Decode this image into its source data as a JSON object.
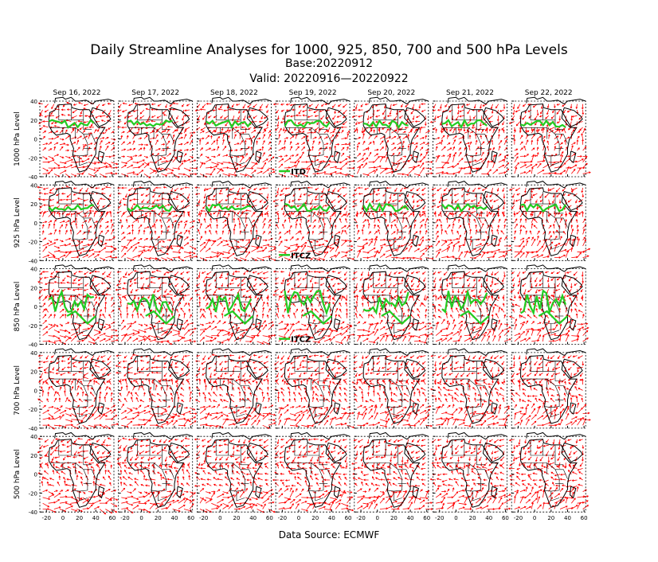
{
  "header": {
    "title": "Daily Streamline Analyses for 1000, 925, 850, 700 and 500 hPa Levels",
    "base": "Base:20220912",
    "valid": "Valid: 20220916—20220922"
  },
  "columns": [
    "Sep 16, 2022",
    "Sep 17, 2022",
    "Sep 18, 2022",
    "Sep 19, 2022",
    "Sep 20, 2022",
    "Sep 21, 2022",
    "Sep 22, 2022"
  ],
  "rows": [
    "1000 hPa Level",
    "925 hPa Level",
    "850 hPa Level",
    "700 hPa Level",
    "500 hPa Level"
  ],
  "map": {
    "xlim": [
      -28,
      62
    ],
    "ylim": [
      -40,
      40
    ],
    "xticks": [
      -20,
      0,
      20,
      40,
      60
    ],
    "yticks": [
      -40,
      -20,
      0,
      20,
      40
    ]
  },
  "annotations": [
    {
      "row": 0,
      "column": 3,
      "label": "ITD"
    },
    {
      "row": 1,
      "column": 3,
      "label": "ITCZ"
    },
    {
      "row": 2,
      "column": 3,
      "label": "ITCZ"
    }
  ],
  "footer": "Data Source: ECMWF"
}
